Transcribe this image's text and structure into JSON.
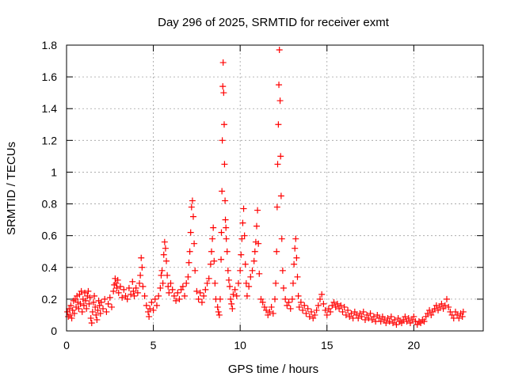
{
  "chart_data": {
    "type": "scatter",
    "title": "Day 296 of 2025, SRMTID for receiver exmt",
    "xlabel": "GPS time / hours",
    "ylabel": "SRMTID / TECUs",
    "xlim": [
      0,
      24
    ],
    "ylim": [
      0,
      1.8
    ],
    "xticks": [
      0,
      5,
      10,
      15,
      20
    ],
    "xtick_labels": [
      "0",
      "5",
      "10",
      "15",
      "20"
    ],
    "yticks": [
      0,
      0.2,
      0.4,
      0.6,
      0.8,
      1.0,
      1.2,
      1.4,
      1.6,
      1.8
    ],
    "ytick_labels": [
      "0",
      "0.2",
      "0.4",
      "0.6",
      "0.8",
      "1",
      "1.2",
      "1.4",
      "1.6",
      "1.8"
    ],
    "grid": true,
    "marker": "+",
    "color": "#ff0000",
    "series": [
      {
        "name": "SRMTID",
        "points": [
          [
            0.05,
            0.12
          ],
          [
            0.1,
            0.09
          ],
          [
            0.15,
            0.14
          ],
          [
            0.2,
            0.1
          ],
          [
            0.25,
            0.16
          ],
          [
            0.3,
            0.08
          ],
          [
            0.35,
            0.13
          ],
          [
            0.4,
            0.19
          ],
          [
            0.45,
            0.11
          ],
          [
            0.5,
            0.2
          ],
          [
            0.55,
            0.15
          ],
          [
            0.6,
            0.22
          ],
          [
            0.65,
            0.18
          ],
          [
            0.7,
            0.14
          ],
          [
            0.75,
            0.23
          ],
          [
            0.8,
            0.17
          ],
          [
            0.85,
            0.25
          ],
          [
            0.9,
            0.12
          ],
          [
            0.95,
            0.2
          ],
          [
            1.0,
            0.16
          ],
          [
            1.05,
            0.24
          ],
          [
            1.1,
            0.19
          ],
          [
            1.15,
            0.14
          ],
          [
            1.2,
            0.22
          ],
          [
            1.25,
            0.25
          ],
          [
            1.3,
            0.17
          ],
          [
            1.35,
            0.21
          ],
          [
            1.4,
            0.08
          ],
          [
            1.45,
            0.05
          ],
          [
            1.5,
            0.12
          ],
          [
            1.55,
            0.18
          ],
          [
            1.6,
            0.22
          ],
          [
            1.65,
            0.15
          ],
          [
            1.7,
            0.1
          ],
          [
            1.75,
            0.07
          ],
          [
            1.8,
            0.13
          ],
          [
            1.85,
            0.19
          ],
          [
            1.9,
            0.16
          ],
          [
            1.95,
            0.11
          ],
          [
            2.0,
            0.18
          ],
          [
            2.1,
            0.14
          ],
          [
            2.2,
            0.2
          ],
          [
            2.3,
            0.12
          ],
          [
            2.4,
            0.17
          ],
          [
            2.5,
            0.21
          ],
          [
            2.6,
            0.15
          ],
          [
            2.7,
            0.25
          ],
          [
            2.75,
            0.29
          ],
          [
            2.8,
            0.33
          ],
          [
            2.85,
            0.3
          ],
          [
            2.9,
            0.27
          ],
          [
            2.95,
            0.32
          ],
          [
            3.0,
            0.24
          ],
          [
            3.1,
            0.28
          ],
          [
            3.2,
            0.21
          ],
          [
            3.3,
            0.26
          ],
          [
            3.4,
            0.22
          ],
          [
            3.5,
            0.2
          ],
          [
            3.6,
            0.27
          ],
          [
            3.7,
            0.23
          ],
          [
            3.8,
            0.31
          ],
          [
            3.85,
            0.25
          ],
          [
            3.9,
            0.22
          ],
          [
            4.0,
            0.27
          ],
          [
            4.1,
            0.24
          ],
          [
            4.2,
            0.3
          ],
          [
            4.25,
            0.35
          ],
          [
            4.3,
            0.46
          ],
          [
            4.35,
            0.4
          ],
          [
            4.4,
            0.28
          ],
          [
            4.5,
            0.22
          ],
          [
            4.6,
            0.16
          ],
          [
            4.7,
            0.12
          ],
          [
            4.75,
            0.09
          ],
          [
            4.8,
            0.14
          ],
          [
            4.9,
            0.18
          ],
          [
            5.0,
            0.13
          ],
          [
            5.1,
            0.2
          ],
          [
            5.2,
            0.16
          ],
          [
            5.3,
            0.22
          ],
          [
            5.4,
            0.27
          ],
          [
            5.45,
            0.35
          ],
          [
            5.5,
            0.38
          ],
          [
            5.55,
            0.3
          ],
          [
            5.6,
            0.48
          ],
          [
            5.65,
            0.56
          ],
          [
            5.7,
            0.52
          ],
          [
            5.75,
            0.44
          ],
          [
            5.8,
            0.35
          ],
          [
            5.85,
            0.28
          ],
          [
            5.9,
            0.24
          ],
          [
            6.0,
            0.3
          ],
          [
            6.1,
            0.26
          ],
          [
            6.2,
            0.22
          ],
          [
            6.3,
            0.19
          ],
          [
            6.4,
            0.24
          ],
          [
            6.5,
            0.2
          ],
          [
            6.6,
            0.26
          ],
          [
            6.7,
            0.28
          ],
          [
            6.8,
            0.22
          ],
          [
            6.9,
            0.3
          ],
          [
            7.0,
            0.34
          ],
          [
            7.05,
            0.43
          ],
          [
            7.1,
            0.5
          ],
          [
            7.15,
            0.62
          ],
          [
            7.2,
            0.78
          ],
          [
            7.25,
            0.82
          ],
          [
            7.3,
            0.72
          ],
          [
            7.35,
            0.55
          ],
          [
            7.4,
            0.38
          ],
          [
            7.5,
            0.25
          ],
          [
            7.6,
            0.2
          ],
          [
            7.7,
            0.24
          ],
          [
            7.8,
            0.18
          ],
          [
            7.9,
            0.22
          ],
          [
            8.0,
            0.26
          ],
          [
            8.1,
            0.3
          ],
          [
            8.2,
            0.33
          ],
          [
            8.3,
            0.42
          ],
          [
            8.35,
            0.5
          ],
          [
            8.4,
            0.58
          ],
          [
            8.45,
            0.65
          ],
          [
            8.5,
            0.44
          ],
          [
            8.55,
            0.3
          ],
          [
            8.6,
            0.2
          ],
          [
            8.7,
            0.15
          ],
          [
            8.75,
            0.12
          ],
          [
            8.8,
            0.1
          ],
          [
            8.85,
            0.2
          ],
          [
            8.9,
            0.45
          ],
          [
            8.92,
            0.62
          ],
          [
            8.95,
            0.88
          ],
          [
            8.97,
            1.2
          ],
          [
            9.0,
            1.54
          ],
          [
            9.02,
            1.69
          ],
          [
            9.05,
            1.5
          ],
          [
            9.08,
            1.3
          ],
          [
            9.1,
            1.05
          ],
          [
            9.13,
            0.82
          ],
          [
            9.15,
            0.7
          ],
          [
            9.18,
            0.65
          ],
          [
            9.2,
            0.58
          ],
          [
            9.25,
            0.5
          ],
          [
            9.3,
            0.38
          ],
          [
            9.35,
            0.32
          ],
          [
            9.4,
            0.28
          ],
          [
            9.45,
            0.2
          ],
          [
            9.5,
            0.17
          ],
          [
            9.55,
            0.14
          ],
          [
            9.6,
            0.23
          ],
          [
            9.7,
            0.26
          ],
          [
            9.8,
            0.22
          ],
          [
            9.9,
            0.3
          ],
          [
            10.0,
            0.38
          ],
          [
            10.05,
            0.48
          ],
          [
            10.1,
            0.58
          ],
          [
            10.15,
            0.68
          ],
          [
            10.2,
            0.77
          ],
          [
            10.25,
            0.6
          ],
          [
            10.3,
            0.42
          ],
          [
            10.35,
            0.3
          ],
          [
            10.4,
            0.22
          ],
          [
            10.5,
            0.28
          ],
          [
            10.6,
            0.34
          ],
          [
            10.7,
            0.38
          ],
          [
            10.8,
            0.44
          ],
          [
            10.85,
            0.5
          ],
          [
            10.9,
            0.56
          ],
          [
            10.95,
            0.66
          ],
          [
            11.0,
            0.76
          ],
          [
            11.05,
            0.55
          ],
          [
            11.1,
            0.36
          ],
          [
            11.2,
            0.2
          ],
          [
            11.3,
            0.18
          ],
          [
            11.4,
            0.15
          ],
          [
            11.5,
            0.13
          ],
          [
            11.6,
            0.1
          ],
          [
            11.7,
            0.12
          ],
          [
            11.8,
            0.15
          ],
          [
            11.9,
            0.11
          ],
          [
            12.0,
            0.2
          ],
          [
            12.05,
            0.3
          ],
          [
            12.1,
            0.5
          ],
          [
            12.13,
            0.78
          ],
          [
            12.16,
            1.05
          ],
          [
            12.2,
            1.3
          ],
          [
            12.23,
            1.55
          ],
          [
            12.26,
            1.77
          ],
          [
            12.3,
            1.45
          ],
          [
            12.33,
            1.1
          ],
          [
            12.36,
            0.85
          ],
          [
            12.4,
            0.58
          ],
          [
            12.45,
            0.38
          ],
          [
            12.5,
            0.27
          ],
          [
            12.6,
            0.2
          ],
          [
            12.7,
            0.16
          ],
          [
            12.8,
            0.18
          ],
          [
            12.9,
            0.14
          ],
          [
            13.0,
            0.2
          ],
          [
            13.05,
            0.3
          ],
          [
            13.1,
            0.42
          ],
          [
            13.15,
            0.52
          ],
          [
            13.2,
            0.58
          ],
          [
            13.25,
            0.46
          ],
          [
            13.3,
            0.34
          ],
          [
            13.35,
            0.22
          ],
          [
            13.4,
            0.15
          ],
          [
            13.5,
            0.18
          ],
          [
            13.6,
            0.13
          ],
          [
            13.7,
            0.16
          ],
          [
            13.8,
            0.11
          ],
          [
            13.9,
            0.14
          ],
          [
            14.0,
            0.09
          ],
          [
            14.1,
            0.12
          ],
          [
            14.2,
            0.08
          ],
          [
            14.3,
            0.1
          ],
          [
            14.4,
            0.13
          ],
          [
            14.5,
            0.16
          ],
          [
            14.6,
            0.2
          ],
          [
            14.7,
            0.23
          ],
          [
            14.8,
            0.17
          ],
          [
            14.9,
            0.13
          ],
          [
            15.0,
            0.1
          ],
          [
            15.1,
            0.14
          ],
          [
            15.2,
            0.12
          ],
          [
            15.3,
            0.16
          ],
          [
            15.4,
            0.18
          ],
          [
            15.5,
            0.15
          ],
          [
            15.6,
            0.17
          ],
          [
            15.7,
            0.14
          ],
          [
            15.8,
            0.16
          ],
          [
            15.9,
            0.12
          ],
          [
            16.0,
            0.15
          ],
          [
            16.1,
            0.1
          ],
          [
            16.2,
            0.13
          ],
          [
            16.3,
            0.09
          ],
          [
            16.4,
            0.11
          ],
          [
            16.5,
            0.08
          ],
          [
            16.6,
            0.12
          ],
          [
            16.7,
            0.1
          ],
          [
            16.8,
            0.08
          ],
          [
            16.9,
            0.11
          ],
          [
            17.0,
            0.09
          ],
          [
            17.1,
            0.12
          ],
          [
            17.2,
            0.07
          ],
          [
            17.3,
            0.1
          ],
          [
            17.4,
            0.08
          ],
          [
            17.5,
            0.11
          ],
          [
            17.6,
            0.07
          ],
          [
            17.7,
            0.09
          ],
          [
            17.8,
            0.06
          ],
          [
            17.9,
            0.1
          ],
          [
            18.0,
            0.08
          ],
          [
            18.1,
            0.06
          ],
          [
            18.2,
            0.09
          ],
          [
            18.3,
            0.07
          ],
          [
            18.4,
            0.05
          ],
          [
            18.5,
            0.08
          ],
          [
            18.6,
            0.06
          ],
          [
            18.7,
            0.09
          ],
          [
            18.8,
            0.05
          ],
          [
            18.9,
            0.07
          ],
          [
            19.0,
            0.04
          ],
          [
            19.1,
            0.08
          ],
          [
            19.2,
            0.06
          ],
          [
            19.3,
            0.05
          ],
          [
            19.4,
            0.07
          ],
          [
            19.5,
            0.09
          ],
          [
            19.6,
            0.06
          ],
          [
            19.7,
            0.08
          ],
          [
            19.8,
            0.05
          ],
          [
            19.9,
            0.07
          ],
          [
            20.0,
            0.09
          ],
          [
            20.1,
            0.06
          ],
          [
            20.2,
            0.04
          ],
          [
            20.3,
            0.06
          ],
          [
            20.4,
            0.05
          ],
          [
            20.5,
            0.07
          ],
          [
            20.6,
            0.06
          ],
          [
            20.7,
            0.09
          ],
          [
            20.8,
            0.11
          ],
          [
            20.9,
            0.13
          ],
          [
            21.0,
            0.1
          ],
          [
            21.1,
            0.12
          ],
          [
            21.2,
            0.14
          ],
          [
            21.3,
            0.16
          ],
          [
            21.4,
            0.13
          ],
          [
            21.5,
            0.15
          ],
          [
            21.6,
            0.17
          ],
          [
            21.7,
            0.14
          ],
          [
            21.8,
            0.16
          ],
          [
            21.9,
            0.2
          ],
          [
            22.0,
            0.15
          ],
          [
            22.1,
            0.12
          ],
          [
            22.2,
            0.1
          ],
          [
            22.3,
            0.08
          ],
          [
            22.4,
            0.12
          ],
          [
            22.5,
            0.1
          ],
          [
            22.6,
            0.08
          ],
          [
            22.7,
            0.11
          ],
          [
            22.8,
            0.09
          ],
          [
            22.85,
            0.12
          ]
        ]
      }
    ]
  }
}
